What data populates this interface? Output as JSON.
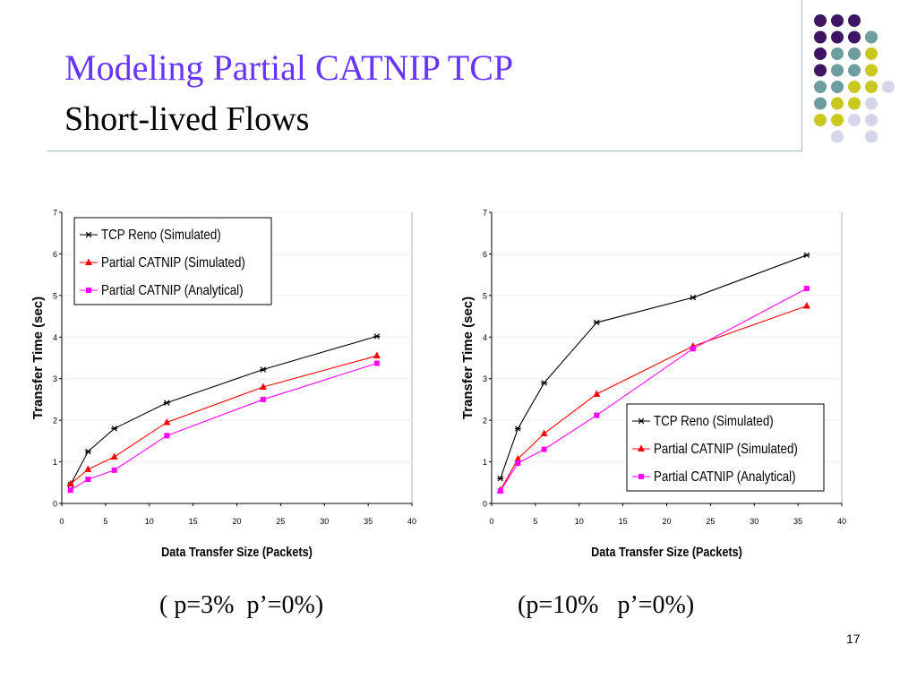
{
  "slide": {
    "title": "Modeling Partial CATNIP TCP",
    "subtitle": "Short-lived Flows",
    "captions": [
      "( p=3%  p’=0%)",
      "(p=10%   p’=0%)"
    ],
    "page_number": "17"
  },
  "decoration": {
    "dot_colors": {
      "purple": "#3d1563",
      "teal": "#6e9d9e",
      "yellow": "#c8c81e",
      "lavender": "#d6d6ea"
    },
    "dot_grid": [
      [
        "purple",
        "purple",
        "purple",
        ""
      ],
      [
        "purple",
        "purple",
        "purple",
        "teal"
      ],
      [
        "purple",
        "teal",
        "teal",
        "yellow"
      ],
      [
        "purple",
        "teal",
        "teal",
        "yellow"
      ],
      [
        "teal",
        "teal",
        "yellow",
        "yellow",
        "lavender"
      ],
      [
        "teal",
        "yellow",
        "yellow",
        "lavender"
      ],
      [
        "yellow",
        "yellow",
        "lavender",
        "lavender"
      ],
      [
        "",
        "lavender",
        "",
        "lavender"
      ]
    ]
  },
  "chart_data": [
    {
      "type": "line",
      "xlabel": "Data Transfer Size (Packets)",
      "ylabel": "Transfer Time (sec)",
      "xlim": [
        0,
        40
      ],
      "ylim": [
        0,
        7
      ],
      "xticks": [
        0,
        5,
        10,
        15,
        20,
        25,
        30,
        35,
        40
      ],
      "yticks": [
        0,
        1,
        2,
        3,
        4,
        5,
        6,
        7
      ],
      "grid": true,
      "legend_position": "top-left",
      "series": [
        {
          "name": "TCP Reno (Simulated)",
          "color": "#000000",
          "marker": "star",
          "x": [
            1,
            3,
            6,
            12,
            23,
            36
          ],
          "y": [
            0.45,
            1.25,
            1.8,
            2.42,
            3.22,
            4.02
          ]
        },
        {
          "name": "Partial CATNIP (Simulated)",
          "color": "#ff0000",
          "marker": "triangle",
          "x": [
            1,
            3,
            6,
            12,
            23,
            36
          ],
          "y": [
            0.47,
            0.82,
            1.12,
            1.95,
            2.8,
            3.55
          ]
        },
        {
          "name": "Partial CATNIP (Analytical)",
          "color": "#ff00ff",
          "marker": "square",
          "x": [
            1,
            3,
            6,
            12,
            23,
            36
          ],
          "y": [
            0.32,
            0.58,
            0.8,
            1.63,
            2.5,
            3.37
          ]
        }
      ]
    },
    {
      "type": "line",
      "xlabel": "Data Transfer Size (Packets)",
      "ylabel": "Transfer Time (sec)",
      "xlim": [
        0,
        40
      ],
      "ylim": [
        0,
        7
      ],
      "xticks": [
        0,
        5,
        10,
        15,
        20,
        25,
        30,
        35,
        40
      ],
      "yticks": [
        0,
        1,
        2,
        3,
        4,
        5,
        6,
        7
      ],
      "grid": true,
      "legend_position": "bottom-right",
      "series": [
        {
          "name": "TCP Reno (Simulated)",
          "color": "#000000",
          "marker": "star",
          "x": [
            1,
            3,
            6,
            12,
            23,
            36
          ],
          "y": [
            0.6,
            1.8,
            2.9,
            4.35,
            4.95,
            5.97
          ]
        },
        {
          "name": "Partial CATNIP (Simulated)",
          "color": "#ff0000",
          "marker": "triangle",
          "x": [
            1,
            3,
            6,
            12,
            23,
            36
          ],
          "y": [
            0.32,
            1.07,
            1.68,
            2.63,
            3.78,
            4.75
          ]
        },
        {
          "name": "Partial CATNIP (Analytical)",
          "color": "#ff00ff",
          "marker": "square",
          "x": [
            1,
            3,
            6,
            12,
            23,
            36
          ],
          "y": [
            0.3,
            0.97,
            1.3,
            2.12,
            3.72,
            5.17
          ]
        }
      ]
    }
  ]
}
